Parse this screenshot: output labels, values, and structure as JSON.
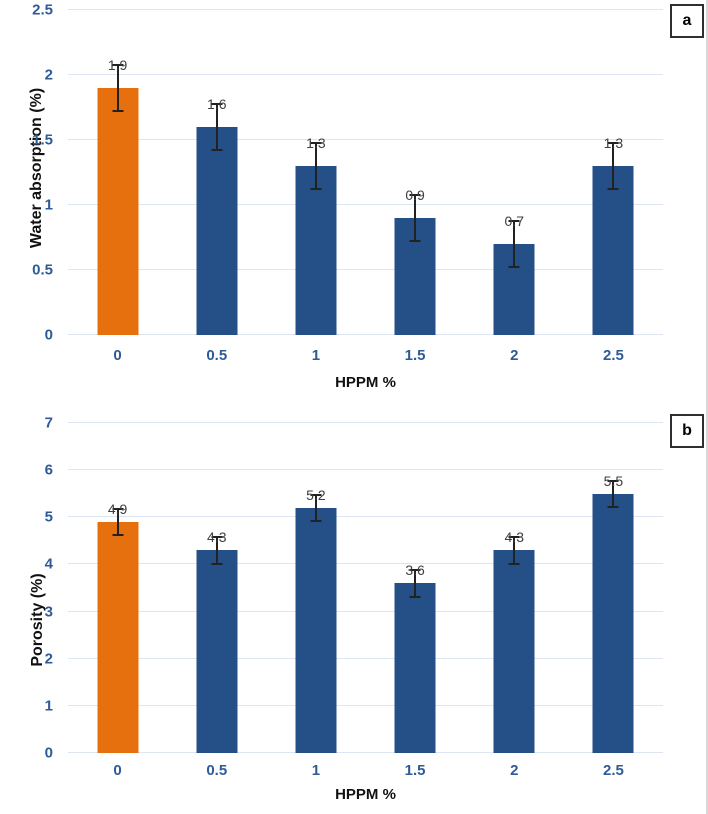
{
  "colors": {
    "baseline_bar_orange": "#e6700d",
    "series_bar_blue": "#254f87",
    "tick_label_blue": "#2e5b97",
    "gridline": "#dce5f1",
    "error_bar": "#222222"
  },
  "chart_data": [
    {
      "type": "bar",
      "panel_label": "a",
      "xlabel": "HPPM %",
      "ylabel": "Water absorption (%)",
      "categories": [
        "0",
        "0.5",
        "1",
        "1.5",
        "2",
        "2.5"
      ],
      "values": [
        1.9,
        1.6,
        1.3,
        0.9,
        0.7,
        1.3
      ],
      "value_labels": [
        "1.9",
        "1.6",
        "1.3",
        "0.9",
        "0.7",
        "1.3"
      ],
      "errors": [
        0.18,
        0.18,
        0.18,
        0.18,
        0.18,
        0.18
      ],
      "ylim": [
        0,
        2.5
      ],
      "ytick_values": [
        0,
        0.5,
        1,
        1.5,
        2,
        2.5
      ],
      "ytick_labels": [
        "0",
        "0.5",
        "1",
        "1.5",
        "2",
        "2.5"
      ],
      "grid": true,
      "legend": false,
      "bar_colors": [
        "#e6700d",
        "#254f87",
        "#254f87",
        "#254f87",
        "#254f87",
        "#254f87"
      ]
    },
    {
      "type": "bar",
      "panel_label": "b",
      "xlabel": "HPPM %",
      "ylabel": "Porosity (%)",
      "categories": [
        "0",
        "0.5",
        "1",
        "1.5",
        "2",
        "2.5"
      ],
      "values": [
        4.9,
        4.3,
        5.2,
        3.6,
        4.3,
        5.5
      ],
      "value_labels": [
        "4.9",
        "4.3",
        "5.2",
        "3.6",
        "4.3",
        "5.5"
      ],
      "errors": [
        0.28,
        0.28,
        0.28,
        0.28,
        0.28,
        0.28
      ],
      "ylim": [
        0,
        7
      ],
      "ytick_values": [
        0,
        1,
        2,
        3,
        4,
        5,
        6,
        7
      ],
      "ytick_labels": [
        "0",
        "1",
        "2",
        "3",
        "4",
        "5",
        "6",
        "7"
      ],
      "grid": true,
      "legend": false,
      "bar_colors": [
        "#e6700d",
        "#254f87",
        "#254f87",
        "#254f87",
        "#254f87",
        "#254f87"
      ]
    }
  ]
}
